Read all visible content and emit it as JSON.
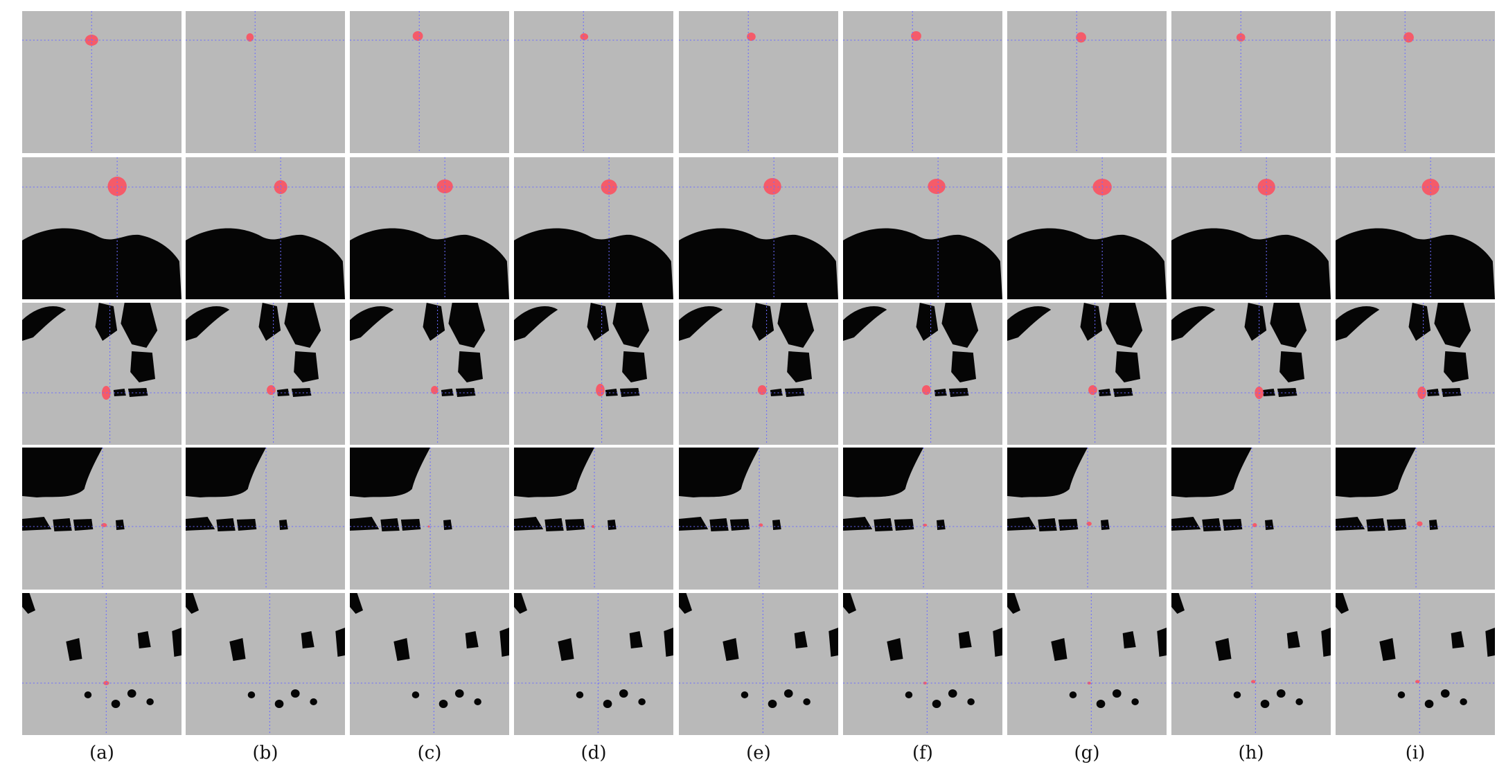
{
  "figure": {
    "panel_labels": [
      "(a)",
      "(b)",
      "(c)",
      "(d)",
      "(e)",
      "(f)",
      "(g)",
      "(h)",
      "(i)"
    ],
    "row_count": 5,
    "cell_description": "CT slice crop with red segmentation overlay and blue dotted crosshair",
    "colors": {
      "background": "#ffffff",
      "tissue_gray": "#b9b9b9",
      "air_black": "#050505",
      "segmentation_red": "#ff4a5a",
      "crosshair_blue": "#6b6bff"
    }
  }
}
